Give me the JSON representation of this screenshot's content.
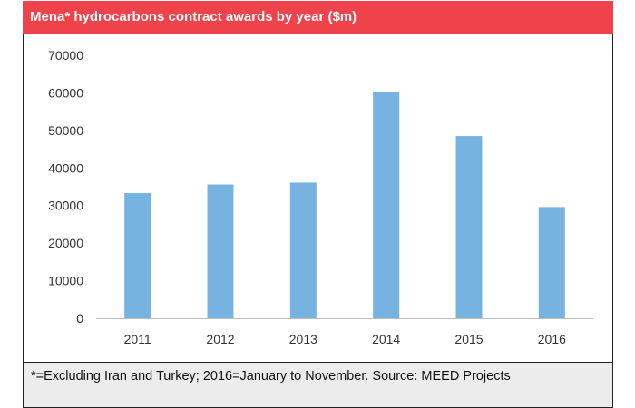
{
  "title": "Mena* hydrocarbons contract awards by year ($m)",
  "footnote": "*=Excluding Iran and Turkey; 2016=January to November. Source: MEED Projects",
  "colors": {
    "header": "#f0424a",
    "bar": "#77b3e0",
    "footer": "#ececec"
  },
  "chart_data": {
    "type": "bar",
    "title": "Mena* hydrocarbons contract awards by year ($m)",
    "categories": [
      "2011",
      "2012",
      "2013",
      "2014",
      "2015",
      "2016"
    ],
    "values": [
      33300,
      35600,
      36100,
      60300,
      48500,
      29600
    ],
    "ylim": [
      0,
      70000
    ],
    "yticks": [
      "0",
      "10000",
      "20000",
      "30000",
      "40000",
      "50000",
      "60000",
      "70000"
    ],
    "grid": false
  }
}
